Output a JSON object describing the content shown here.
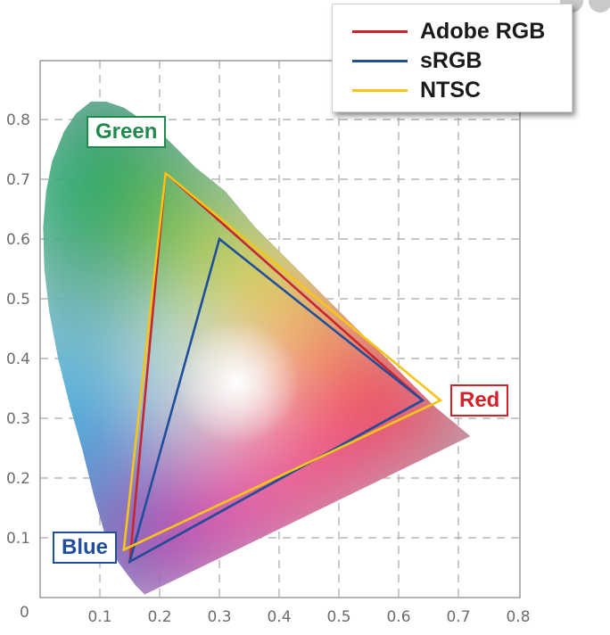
{
  "chart_data": {
    "type": "line",
    "title": "",
    "xlabel": "",
    "ylabel": "",
    "xlim": [
      0,
      0.8
    ],
    "ylim": [
      0,
      0.85
    ],
    "x_ticks": [
      "0.1",
      "0.2",
      "0.3",
      "0.4",
      "0.5",
      "0.6",
      "0.7",
      "0.8"
    ],
    "y_ticks": [
      "0.1",
      "0.2",
      "0.3",
      "0.4",
      "0.5",
      "0.6",
      "0.7",
      "0.8"
    ],
    "origin_label": "0",
    "grid": true,
    "legend_position": "top-right",
    "locus": [
      [
        0.175,
        0.005
      ],
      [
        0.16,
        0.02
      ],
      [
        0.145,
        0.04
      ],
      [
        0.13,
        0.06
      ],
      [
        0.11,
        0.1
      ],
      [
        0.09,
        0.17
      ],
      [
        0.07,
        0.25
      ],
      [
        0.05,
        0.32
      ],
      [
        0.03,
        0.4
      ],
      [
        0.015,
        0.48
      ],
      [
        0.007,
        0.55
      ],
      [
        0.005,
        0.62
      ],
      [
        0.01,
        0.68
      ],
      [
        0.02,
        0.73
      ],
      [
        0.04,
        0.78
      ],
      [
        0.06,
        0.81
      ],
      [
        0.085,
        0.83
      ],
      [
        0.11,
        0.83
      ],
      [
        0.14,
        0.82
      ],
      [
        0.17,
        0.8
      ],
      [
        0.21,
        0.77
      ],
      [
        0.26,
        0.72
      ],
      [
        0.31,
        0.68
      ],
      [
        0.36,
        0.62
      ],
      [
        0.42,
        0.56
      ],
      [
        0.48,
        0.5
      ],
      [
        0.54,
        0.44
      ],
      [
        0.6,
        0.38
      ],
      [
        0.66,
        0.32
      ],
      [
        0.72,
        0.27
      ]
    ],
    "series": [
      {
        "name": "Adobe RGB",
        "color": "#c8262f",
        "points": [
          [
            0.64,
            0.33
          ],
          [
            0.21,
            0.71
          ],
          [
            0.15,
            0.06
          ]
        ]
      },
      {
        "name": "sRGB",
        "color": "#1f4e9c",
        "points": [
          [
            0.64,
            0.33
          ],
          [
            0.3,
            0.6
          ],
          [
            0.15,
            0.06
          ]
        ]
      },
      {
        "name": "NTSC",
        "color": "#f5c518",
        "points": [
          [
            0.67,
            0.33
          ],
          [
            0.21,
            0.71
          ],
          [
            0.14,
            0.08
          ]
        ]
      }
    ],
    "vertex_labels": [
      {
        "text": "Green",
        "color": "#1f8a4c"
      },
      {
        "text": "Red",
        "color": "#d4222a"
      },
      {
        "text": "Blue",
        "color": "#1f4e9c"
      }
    ]
  }
}
